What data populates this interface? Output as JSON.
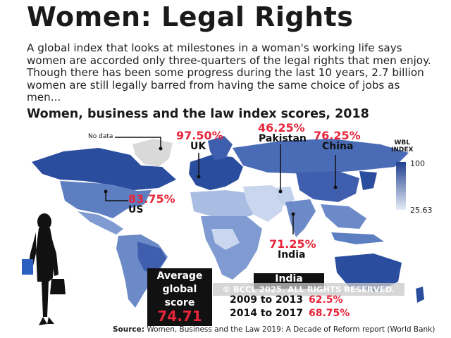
{
  "title": "Women: Legal Rights",
  "intro": "A global index that looks at milestones in a woman's working life says women are accorded only three-quarters of the legal rights that men enjoy. Though there has been some progress during the last 10 years, 2.7 billion women are still legally barred from having the same choice of jobs as men...",
  "subtitle": "Women, business and the law index scores, 2018",
  "no_data_label": "No data",
  "legend": {
    "title_line1": "WBL",
    "title_line2": "INDEX",
    "max": "100",
    "min": "25.63",
    "color_max": "#1f3f8f",
    "color_min": "#e6ecf7"
  },
  "callouts": {
    "uk": {
      "value": "97.50%",
      "name": "UK"
    },
    "pakistan": {
      "value": "46.25%",
      "name": "Pakistan"
    },
    "china": {
      "value": "76.25%",
      "name": "China"
    },
    "us": {
      "value": "83.75%",
      "name": "US"
    },
    "india": {
      "value": "71.25%",
      "name": "India"
    }
  },
  "average": {
    "line1": "Average",
    "line2": "global",
    "line3": "score",
    "value": "74.71"
  },
  "india_trend": {
    "title": "India",
    "rows": [
      {
        "years": "2009 to 2013",
        "value": "62.5%"
      },
      {
        "years": "2014 to 2017",
        "value": "68.75%"
      }
    ]
  },
  "watermark": "© BCCL 2025. ALL RIGHTS RESERVED.",
  "source_label": "Source:",
  "source_text": "Women, Business and the Law 2019: A Decade of Reform report (World Bank)",
  "colors": {
    "accent_red": "#e8253a",
    "map_dark": "#2b4d9e",
    "map_mid": "#5d7fc2",
    "map_light": "#a9bde3",
    "no_data": "#d9d9d9"
  }
}
